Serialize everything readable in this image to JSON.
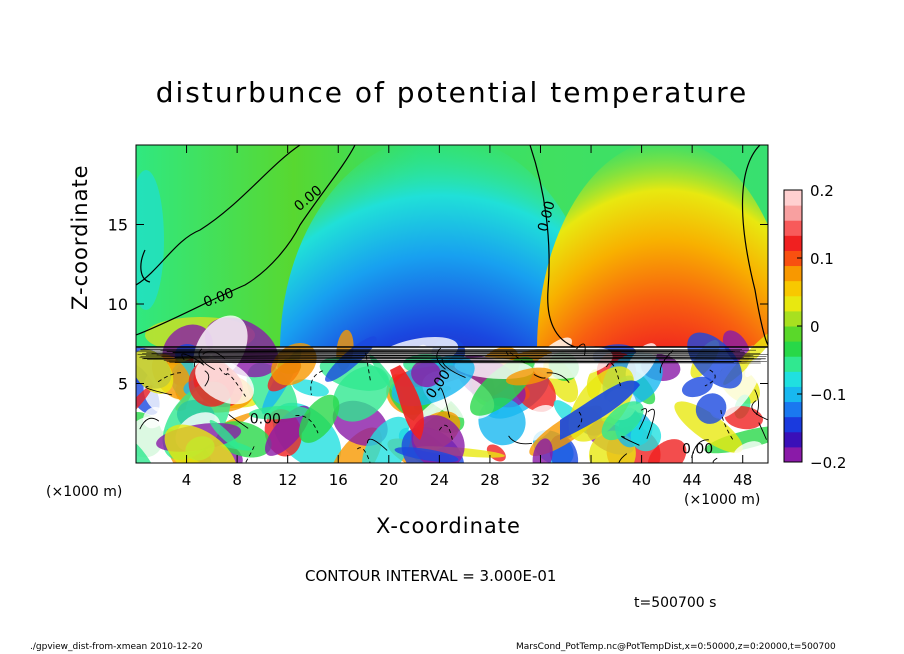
{
  "chart_data": {
    "type": "heatmap",
    "title": "disturbunce of potential temperature",
    "xlabel": "X-coordinate",
    "ylabel": "Z-coordinate",
    "x_unit_label": "(×1000 m)",
    "x_unit_label_right": "(×1000 m)",
    "xlim": [
      0,
      50
    ],
    "ylim": [
      0,
      20
    ],
    "x_ticks": [
      4,
      8,
      12,
      16,
      20,
      24,
      28,
      32,
      36,
      40,
      44,
      48
    ],
    "y_ticks": [
      5,
      10,
      15
    ],
    "colorbar": {
      "range": [
        -0.2,
        0.2
      ],
      "tick_values": [
        0.2,
        0.1,
        0,
        -0.1,
        -0.2
      ],
      "tick_labels": [
        "0.2",
        "0.1",
        "0",
        "−0.1",
        "−0.2"
      ],
      "colors": [
        "#8a1aa8",
        "#3a10b8",
        "#1a3ade",
        "#1a78f0",
        "#18b8f0",
        "#20e0e0",
        "#30e890",
        "#28d848",
        "#5ad82a",
        "#a8e020",
        "#e8e810",
        "#f8c800",
        "#f89800",
        "#f85010",
        "#f02020",
        "#f85a5a",
        "#f8a0a0",
        "#ffd0d0"
      ]
    },
    "contour_labels": [
      "0.00",
      "0.00",
      "0.00",
      "0.00",
      "0.00",
      "0.00"
    ],
    "contour_interval_text": "CONTOUR INTERVAL = 3.000E-01",
    "time_text": "t=500700 s",
    "colors": {
      "background_field": "#30e060",
      "negative_core": "#2018a8",
      "positive_core": "#f02020",
      "contour_line": "#000000"
    }
  },
  "footer": {
    "left": "./gpview_dist-from-xmean 2010-12-20",
    "right": "MarsCond_PotTemp.nc@PotTempDist,x=0:50000,z=0:20000,t=500700"
  }
}
